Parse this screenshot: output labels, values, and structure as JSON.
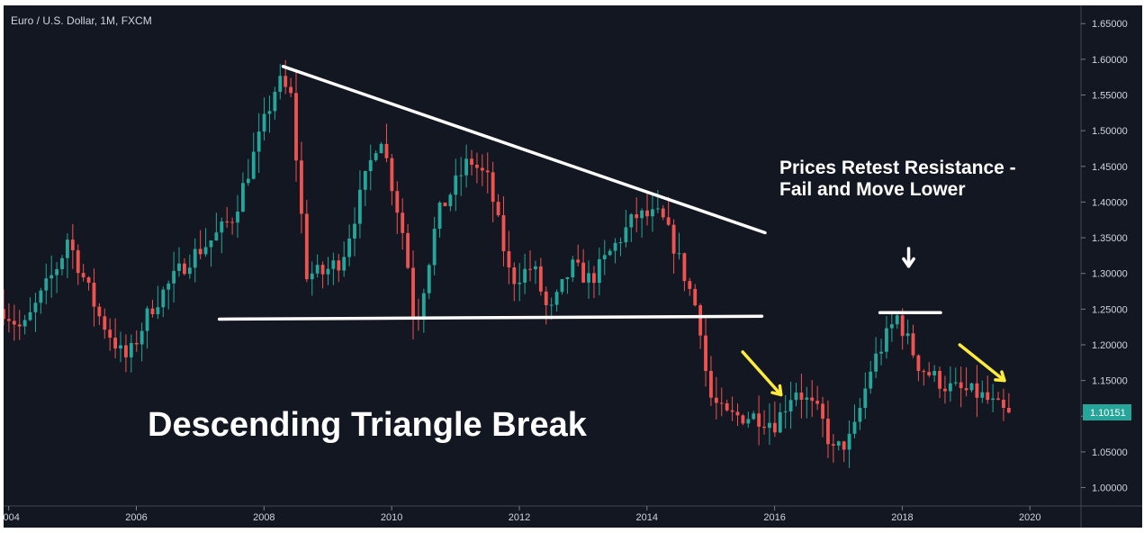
{
  "chart_data": {
    "type": "candlestick",
    "symbol": "Euro / U.S. Dollar, 1M, FXCM",
    "title": "Descending Triangle Break",
    "annotation": "Prices Retest Resistance - Fail and Move Lower",
    "annotation_lines": [
      "Prices Retest Resistance -",
      "Fail and Move Lower"
    ],
    "last_price": "1.10151",
    "xlim": [
      2003.92,
      2020.8
    ],
    "ylim": [
      0.9742,
      1.6755
    ],
    "x_ticks": [
      "2004",
      "2006",
      "2008",
      "2010",
      "2012",
      "2014",
      "2016",
      "2018",
      "2020"
    ],
    "y_ticks": [
      "1.65000",
      "1.60000",
      "1.55000",
      "1.50000",
      "1.45000",
      "1.40000",
      "1.35000",
      "1.30000",
      "1.25000",
      "1.20000",
      "1.15000",
      "1.10000",
      "1.05000",
      "1.00000"
    ],
    "trendlines": [
      {
        "name": "descending resistance",
        "from": [
          2008.3,
          1.59
        ],
        "to": [
          2015.85,
          1.357
        ]
      },
      {
        "name": "horizontal support",
        "from": [
          2007.3,
          1.236
        ],
        "to": [
          2015.8,
          1.24
        ]
      },
      {
        "name": "retest resistance",
        "from": [
          2017.65,
          1.245
        ],
        "to": [
          2018.6,
          1.245
        ]
      }
    ],
    "arrows": [
      {
        "color": "#ffffff",
        "from": [
          2018.1,
          1.335
        ],
        "to": [
          2018.1,
          1.31
        ]
      },
      {
        "color": "#ffeb3b",
        "from": [
          2015.5,
          1.19
        ],
        "to": [
          2016.1,
          1.13
        ]
      },
      {
        "color": "#ffeb3b",
        "from": [
          2018.9,
          1.2
        ],
        "to": [
          2019.6,
          1.15
        ]
      }
    ],
    "anchors": [
      [
        2004.0,
        1.25
      ],
      [
        2004.3,
        1.22
      ],
      [
        2004.9,
        1.32
      ],
      [
        2005.0,
        1.35
      ],
      [
        2005.5,
        1.24
      ],
      [
        2005.9,
        1.18
      ],
      [
        2006.0,
        1.19
      ],
      [
        2006.3,
        1.25
      ],
      [
        2006.9,
        1.32
      ],
      [
        2007.3,
        1.35
      ],
      [
        2007.6,
        1.38
      ],
      [
        2007.9,
        1.46
      ],
      [
        2008.3,
        1.57
      ],
      [
        2008.5,
        1.55
      ],
      [
        2008.75,
        1.3
      ],
      [
        2009.0,
        1.3
      ],
      [
        2009.3,
        1.32
      ],
      [
        2009.9,
        1.5
      ],
      [
        2010.3,
        1.34
      ],
      [
        2010.45,
        1.22
      ],
      [
        2010.8,
        1.38
      ],
      [
        2011.3,
        1.46
      ],
      [
        2011.6,
        1.43
      ],
      [
        2011.95,
        1.29
      ],
      [
        2012.3,
        1.31
      ],
      [
        2012.55,
        1.24
      ],
      [
        2012.9,
        1.31
      ],
      [
        2013.2,
        1.29
      ],
      [
        2013.9,
        1.38
      ],
      [
        2014.3,
        1.38
      ],
      [
        2014.5,
        1.34
      ],
      [
        2014.9,
        1.24
      ],
      [
        2015.05,
        1.13
      ],
      [
        2015.3,
        1.1
      ],
      [
        2015.8,
        1.1
      ],
      [
        2016.1,
        1.09
      ],
      [
        2016.4,
        1.14
      ],
      [
        2016.8,
        1.1
      ],
      [
        2017.0,
        1.05
      ],
      [
        2017.3,
        1.07
      ],
      [
        2017.6,
        1.17
      ],
      [
        2018.0,
        1.24
      ],
      [
        2018.35,
        1.17
      ],
      [
        2018.8,
        1.14
      ],
      [
        2019.3,
        1.13
      ],
      [
        2019.75,
        1.1
      ]
    ],
    "colors": {
      "up": "#26a69a",
      "down": "#ef5350",
      "background": "#131722",
      "price_tag": "#26a69a",
      "arrow_highlight": "#ffeb3b"
    }
  }
}
